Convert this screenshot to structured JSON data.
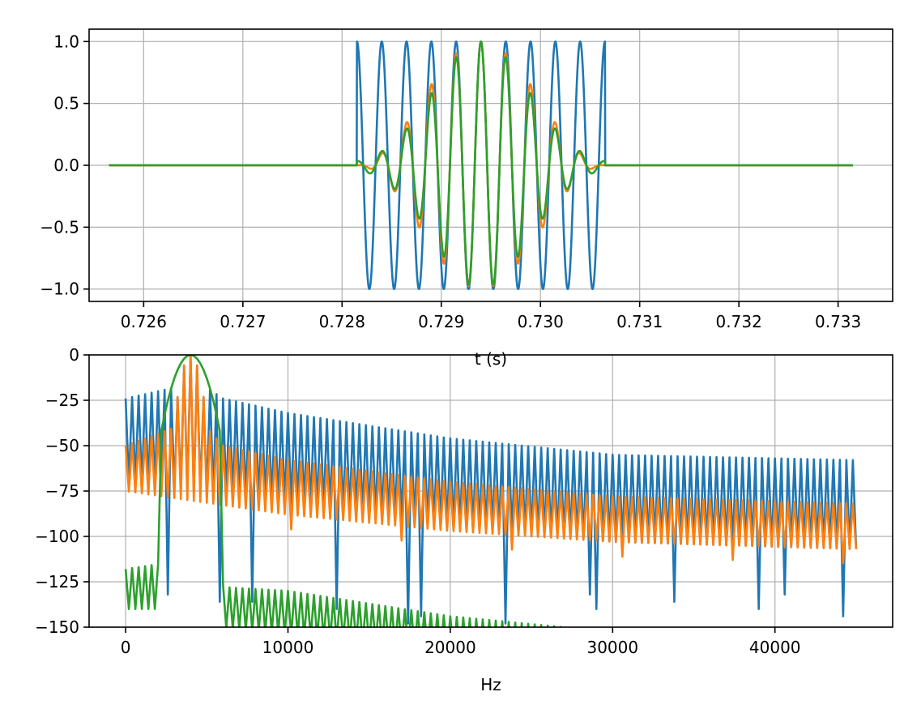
{
  "chart_data": [
    {
      "type": "line",
      "title": "",
      "xlabel": "t (s)",
      "ylabel": "",
      "xlim": [
        0.72545,
        0.73355
      ],
      "ylim": [
        -1.1,
        1.1
      ],
      "xticks": [
        0.726,
        0.727,
        0.728,
        0.729,
        0.73,
        0.731,
        0.732,
        0.733
      ],
      "xtick_labels": [
        "0.726",
        "0.727",
        "0.728",
        "0.729",
        "0.730",
        "0.731",
        "0.732",
        "0.733"
      ],
      "yticks": [
        1.0,
        0.5,
        0.0,
        -0.5,
        -1.0
      ],
      "ytick_labels": [
        "1.0",
        "0.5",
        "0.0",
        "−0.5",
        "−1.0"
      ],
      "grid": true,
      "series": [
        {
          "color": "#1f77b4",
          "description": "rectangular-window sine burst",
          "t_start": 0.72565,
          "t_end": 0.73315,
          "burst_start": 0.72815,
          "burst_end": 0.73065,
          "carrier_hz": 4000,
          "peak_time": 0.7294,
          "amplitude": 1.0,
          "window": "rect"
        },
        {
          "color": "#ff7f0e",
          "description": "hann-windowed sine burst",
          "t_start": 0.72565,
          "t_end": 0.73315,
          "burst_start": 0.72815,
          "burst_end": 0.73065,
          "carrier_hz": 4000,
          "peak_time": 0.7294,
          "amplitude": 1.0,
          "window": "hann"
        },
        {
          "color": "#2ca02c",
          "description": "gaussian-windowed sine burst",
          "t_start": 0.72565,
          "t_end": 0.73315,
          "burst_start": 0.72815,
          "burst_end": 0.73065,
          "carrier_hz": 4000,
          "peak_time": 0.7294,
          "amplitude": 1.0,
          "window": "gauss",
          "gauss_sigma_s": 0.00048
        }
      ]
    },
    {
      "type": "line",
      "title": "",
      "xlabel": "Hz",
      "ylabel": "",
      "xlim": [
        -2250,
        47250
      ],
      "ylim": [
        -150,
        0
      ],
      "xticks": [
        0,
        10000,
        20000,
        30000,
        40000
      ],
      "xtick_labels": [
        "0",
        "10000",
        "20000",
        "30000",
        "40000"
      ],
      "yticks": [
        0,
        -25,
        -50,
        -75,
        -100,
        -125,
        -150
      ],
      "ytick_labels": [
        "0",
        "−25",
        "−50",
        "−75",
        "−100",
        "−125",
        "−150"
      ],
      "grid": true,
      "series": [
        {
          "color": "#1f77b4",
          "description": "spectrum of rectangular burst (dB)",
          "f_max": 45000,
          "peak_hz": 4000,
          "bin_hz": 400,
          "upper_envelope": [
            [
              0,
              -24
            ],
            [
              3000,
              -18
            ],
            [
              4000,
              0
            ],
            [
              5000,
              -18
            ],
            [
              6000,
              -24
            ],
            [
              10000,
              -32
            ],
            [
              20000,
              -46
            ],
            [
              30000,
              -55
            ],
            [
              45000,
              -58
            ]
          ],
          "lower_envelope": [
            [
              0,
              -70
            ],
            [
              10000,
              -82
            ],
            [
              20000,
              -95
            ],
            [
              30000,
              -103
            ],
            [
              45000,
              -107
            ]
          ],
          "notch_depth_db": [
            -130,
            -150
          ]
        },
        {
          "color": "#ff7f0e",
          "description": "spectrum of hann burst (dB)",
          "f_max": 45000,
          "peak_hz": 4000,
          "bin_hz": 400,
          "upper_envelope": [
            [
              0,
              -50
            ],
            [
              3000,
              -40
            ],
            [
              4000,
              0
            ],
            [
              5000,
              -40
            ],
            [
              6000,
              -50
            ],
            [
              10000,
              -58
            ],
            [
              20000,
              -70
            ],
            [
              30000,
              -78
            ],
            [
              45000,
              -82
            ]
          ],
          "lower_envelope": [
            [
              0,
              -75
            ],
            [
              10000,
              -88
            ],
            [
              20000,
              -97
            ],
            [
              30000,
              -103
            ],
            [
              45000,
              -107
            ]
          ]
        },
        {
          "color": "#2ca02c",
          "description": "spectrum of gaussian burst (dB)",
          "f_max": 45000,
          "peak_hz": 4000,
          "bin_hz": 400,
          "main_lobe_width_hz": 3600,
          "upper_envelope": [
            [
              0,
              -118
            ],
            [
              2200,
              -115
            ],
            [
              4000,
              0
            ],
            [
              5800,
              -125
            ],
            [
              6200,
              -128
            ],
            [
              10000,
              -130
            ],
            [
              20000,
              -144
            ],
            [
              27000,
              -150
            ],
            [
              45000,
              -175
            ]
          ],
          "lower_envelope": [
            [
              0,
              -140
            ],
            [
              2200,
              -140
            ],
            [
              5800,
              -150
            ],
            [
              45000,
              -190
            ]
          ]
        }
      ]
    }
  ]
}
